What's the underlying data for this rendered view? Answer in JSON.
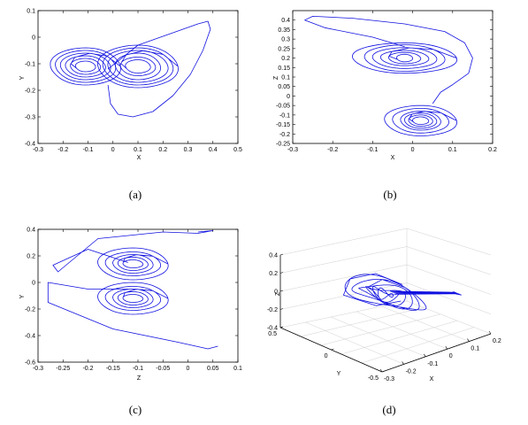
{
  "chart_data": [
    {
      "type": "line",
      "caption": "(a)",
      "xlabel": "X",
      "ylabel": "Y",
      "xlim": [
        -0.3,
        0.5
      ],
      "ylim": [
        -0.4,
        0.1
      ],
      "xticks": [
        "-0.3",
        "-0.2",
        "-0.1",
        "0",
        "0.1",
        "0.2",
        "0.3",
        "0.4",
        "0.5"
      ],
      "yticks": [
        "0.1",
        "0",
        "-0.1",
        "-0.2",
        "-0.3",
        "-0.4"
      ],
      "lobes": [
        {
          "cx": -0.11,
          "cy": -0.11,
          "rx": [
            0.14,
            0.12,
            0.1,
            0.08,
            0.06,
            0.04
          ],
          "ry": [
            0.07,
            0.06,
            0.05,
            0.04,
            0.03,
            0.02
          ]
        },
        {
          "cx": 0.1,
          "cy": -0.11,
          "rx": [
            0.16,
            0.14,
            0.12,
            0.09,
            0.07,
            0.05
          ],
          "ry": [
            0.08,
            0.07,
            0.06,
            0.05,
            0.035,
            0.025
          ]
        }
      ],
      "series": [
        {
          "values_x": [
            -0.02,
            0.1,
            0.25,
            0.34,
            0.38,
            0.39,
            0.36,
            0.31,
            0.24,
            0.16,
            0.08,
            0.02,
            -0.01,
            -0.02
          ],
          "values_y": [
            -0.12,
            -0.03,
            0.02,
            0.05,
            0.06,
            0.03,
            -0.05,
            -0.14,
            -0.22,
            -0.28,
            -0.3,
            -0.29,
            -0.25,
            -0.18
          ]
        }
      ]
    },
    {
      "type": "line",
      "caption": "(b)",
      "xlabel": "X",
      "ylabel": "Z",
      "xlim": [
        -0.3,
        0.2
      ],
      "ylim": [
        -0.25,
        0.45
      ],
      "xticks": [
        "-0.3",
        "-0.2",
        "-0.1",
        "0",
        "0.1",
        "0.2"
      ],
      "yticks": [
        "0.4",
        "0.35",
        "0.3",
        "0.25",
        "0.2",
        "0.15",
        "0.1",
        "0.05",
        "0",
        "-0.05",
        "-0.1",
        "-0.15",
        "-0.2",
        "-0.25"
      ],
      "lobes": [
        {
          "cx": -0.02,
          "cy": 0.2,
          "rx": [
            0.13,
            0.1,
            0.08,
            0.06,
            0.04,
            0.02
          ],
          "ry": [
            0.08,
            0.07,
            0.055,
            0.04,
            0.03,
            0.02
          ]
        },
        {
          "cx": 0.02,
          "cy": -0.13,
          "rx": [
            0.09,
            0.07,
            0.05,
            0.04,
            0.03,
            0.02
          ],
          "ry": [
            0.08,
            0.065,
            0.05,
            0.04,
            0.03,
            0.02
          ]
        }
      ],
      "series": [
        {
          "values_x": [
            -0.02,
            -0.1,
            -0.22,
            -0.27,
            -0.25,
            -0.15,
            -0.02,
            0.08,
            0.13,
            0.15,
            0.14,
            0.1,
            0.07,
            0.05
          ],
          "values_y": [
            0.26,
            0.31,
            0.36,
            0.4,
            0.42,
            0.41,
            0.38,
            0.34,
            0.28,
            0.2,
            0.12,
            0.06,
            0.02,
            -0.04
          ]
        }
      ]
    },
    {
      "type": "line",
      "caption": "(c)",
      "xlabel": "Z",
      "ylabel": "Y",
      "xlim": [
        -0.3,
        0.1
      ],
      "ylim": [
        -0.6,
        0.4
      ],
      "xticks": [
        "-0.3",
        "-0.25",
        "-0.2",
        "-0.15",
        "-0.1",
        "-0.05",
        "0",
        "0.05",
        "0.1"
      ],
      "yticks": [
        "0.4",
        "0.2",
        "0",
        "-0.2",
        "-0.4",
        "-0.6"
      ],
      "lobes": [
        {
          "cx": -0.11,
          "cy": 0.14,
          "rx": [
            0.07,
            0.055,
            0.04,
            0.03,
            0.02
          ],
          "ry": [
            0.12,
            0.09,
            0.07,
            0.05,
            0.03
          ]
        },
        {
          "cx": -0.11,
          "cy": -0.12,
          "rx": [
            0.07,
            0.055,
            0.04,
            0.03,
            0.02
          ],
          "ry": [
            0.12,
            0.09,
            0.07,
            0.05,
            0.03
          ]
        }
      ],
      "series": [
        {
          "values_x": [
            -0.12,
            -0.2,
            -0.27,
            -0.26,
            -0.18,
            -0.05,
            0.02,
            0.05,
            0.02
          ],
          "values_y": [
            0.15,
            0.25,
            0.13,
            0.08,
            0.33,
            0.38,
            0.37,
            0.39,
            0.38
          ]
        },
        {
          "values_x": [
            -0.12,
            -0.2,
            -0.28,
            -0.28,
            -0.15,
            -0.02,
            0.04,
            0.06
          ],
          "values_y": [
            -0.05,
            -0.05,
            0.0,
            -0.15,
            -0.35,
            -0.45,
            -0.5,
            -0.48
          ]
        }
      ]
    },
    {
      "type": "line",
      "caption": "(d)",
      "xlabel": "X",
      "ylabel": "Y",
      "zlabel": "Z",
      "xlim": [
        -0.3,
        0.2
      ],
      "ylim": [
        -0.5,
        0.5
      ],
      "zlim": [
        -0.4,
        0.4
      ],
      "xticks": [
        "-0.3",
        "-0.2",
        "-0.1",
        "0",
        "0.1",
        "0.2"
      ],
      "yticks": [
        "0.5",
        "0",
        "-0.5"
      ],
      "zticks": [
        "0.4",
        "0.2",
        "0",
        "-0.2",
        "-0.4"
      ],
      "lobes": [
        {
          "cx": -0.05,
          "cy": 0.0,
          "cz": 0.0,
          "rx": [
            0.09,
            0.075,
            0.06,
            0.045,
            0.03,
            0.02
          ],
          "ry": [
            0.35,
            0.29,
            0.23,
            0.17,
            0.11,
            0.06
          ]
        }
      ],
      "series": []
    }
  ]
}
